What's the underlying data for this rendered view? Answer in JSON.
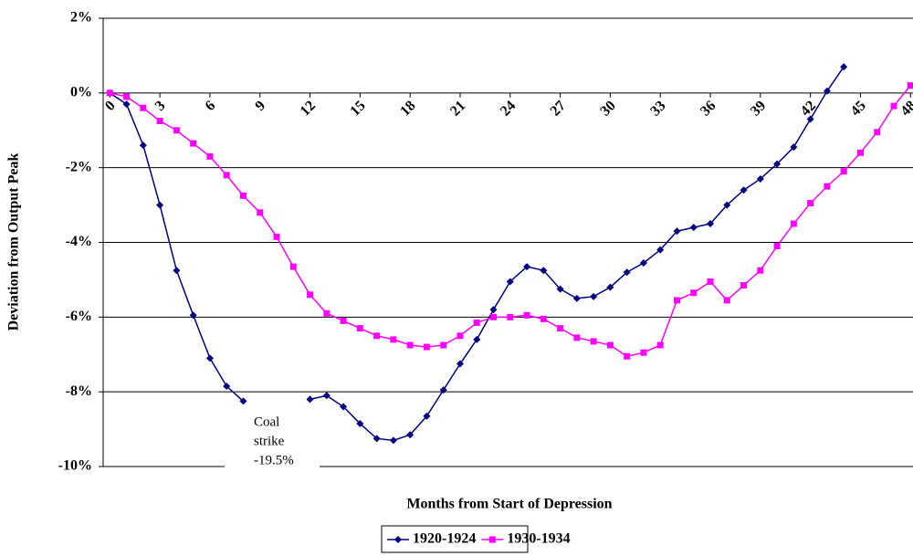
{
  "chart_data": {
    "type": "line",
    "y_label": "Deviation from Output Peak",
    "x_label": "Months from Start of Depression",
    "annotation": [
      "Coal",
      "strike",
      "-19.5%"
    ],
    "x": [
      0,
      1,
      2,
      3,
      4,
      5,
      6,
      7,
      8,
      9,
      10,
      11,
      12,
      13,
      14,
      15,
      16,
      17,
      18,
      19,
      20,
      21,
      22,
      23,
      24,
      25,
      26,
      27,
      28,
      29,
      30,
      31,
      32,
      33,
      34,
      35,
      36,
      37,
      38,
      39,
      40,
      41,
      42,
      43,
      44,
      45,
      46,
      47,
      48
    ],
    "series": [
      {
        "name": "1920-1924",
        "color": "#000080",
        "marker": "diamond",
        "values": [
          0,
          -0.3,
          -1.4,
          -3.0,
          -4.75,
          -5.95,
          -7.1,
          -7.85,
          -8.25,
          null,
          null,
          null,
          -8.2,
          -8.1,
          -8.4,
          -8.85,
          -9.25,
          -9.3,
          -9.15,
          -8.65,
          -7.95,
          -7.25,
          -6.6,
          -5.8,
          -5.05,
          -4.65,
          -4.75,
          -5.25,
          -5.5,
          -5.45,
          -5.2,
          -4.8,
          -4.55,
          -4.2,
          -3.7,
          -3.6,
          -3.5,
          -3.0,
          -2.6,
          -2.3,
          -1.9,
          -1.45,
          -0.7,
          0.05,
          0.7,
          null,
          null,
          null,
          null
        ]
      },
      {
        "name": "1930-1934",
        "color": "#ff00ff",
        "marker": "square",
        "values": [
          0,
          -0.1,
          -0.4,
          -0.75,
          -1.0,
          -1.35,
          -1.7,
          -2.2,
          -2.75,
          -3.2,
          -3.85,
          -4.65,
          -5.4,
          -5.9,
          -6.1,
          -6.3,
          -6.5,
          -6.6,
          -6.75,
          -6.8,
          -6.75,
          -6.5,
          -6.15,
          -6.0,
          -6.0,
          -5.95,
          -6.05,
          -6.3,
          -6.55,
          -6.65,
          -6.75,
          -7.05,
          -6.95,
          -6.75,
          -5.55,
          -5.35,
          -5.05,
          -5.55,
          -5.15,
          -4.75,
          -4.1,
          -3.5,
          -2.95,
          -2.5,
          -2.1,
          -1.6,
          -1.05,
          -0.35,
          0.2
        ]
      }
    ],
    "xlim": [
      -0.4,
      48.15
    ],
    "xticks": [
      0,
      3,
      6,
      9,
      12,
      15,
      18,
      21,
      24,
      27,
      30,
      33,
      36,
      39,
      42,
      45,
      48
    ],
    "ylim": [
      -10,
      2
    ],
    "yticks": [
      {
        "value": -10,
        "label": "-10%"
      },
      {
        "value": -8,
        "label": "-8%"
      },
      {
        "value": -6,
        "label": "-6%"
      },
      {
        "value": -4,
        "label": "-4%"
      },
      {
        "value": -2,
        "label": "-2%"
      },
      {
        "value": 0,
        "label": "0%"
      },
      {
        "value": 2,
        "label": "2%"
      }
    ],
    "grid": true,
    "legend": "bottom"
  }
}
